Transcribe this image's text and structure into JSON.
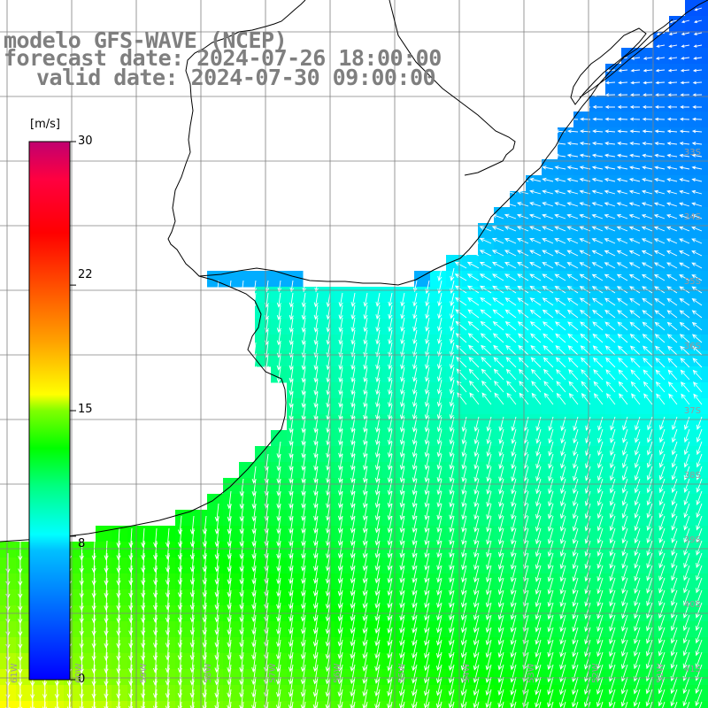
{
  "title": {
    "line1": "modelo GFS-WAVE (NCEP)",
    "line2": "forecast date: 2024-07-26 18:00:00",
    "line3": "valid date: 2024-07-30 09:00:00"
  },
  "colorbar": {
    "unit": "[m/s]",
    "ticks": [
      "30",
      "22",
      "15",
      "8",
      "0"
    ],
    "tick_values": [
      30,
      22,
      15,
      8,
      0
    ],
    "range": [
      0,
      30
    ],
    "colors": [
      "#0000ff",
      "#00a0ff",
      "#00ffff",
      "#00ff40",
      "#00e000",
      "#80ff00",
      "#ffff00",
      "#ffa000",
      "#ff4000",
      "#ff0000",
      "#ff0050",
      "#c00070"
    ]
  },
  "grid": {
    "lat_labels": [
      "33S",
      "34S",
      "35S",
      "36S",
      "37S",
      "38S",
      "39S",
      "40S",
      "41S"
    ],
    "lon_labels": [
      "61W",
      "60W",
      "59W",
      "58W",
      "57W",
      "56W",
      "55W",
      "54W",
      "53W",
      "52W",
      "51W"
    ]
  },
  "colors": {
    "land": "#ffffff",
    "coast": "#000000",
    "grid": "#808080",
    "title": "#7f7f7f",
    "arrows": "#ffffff"
  }
}
